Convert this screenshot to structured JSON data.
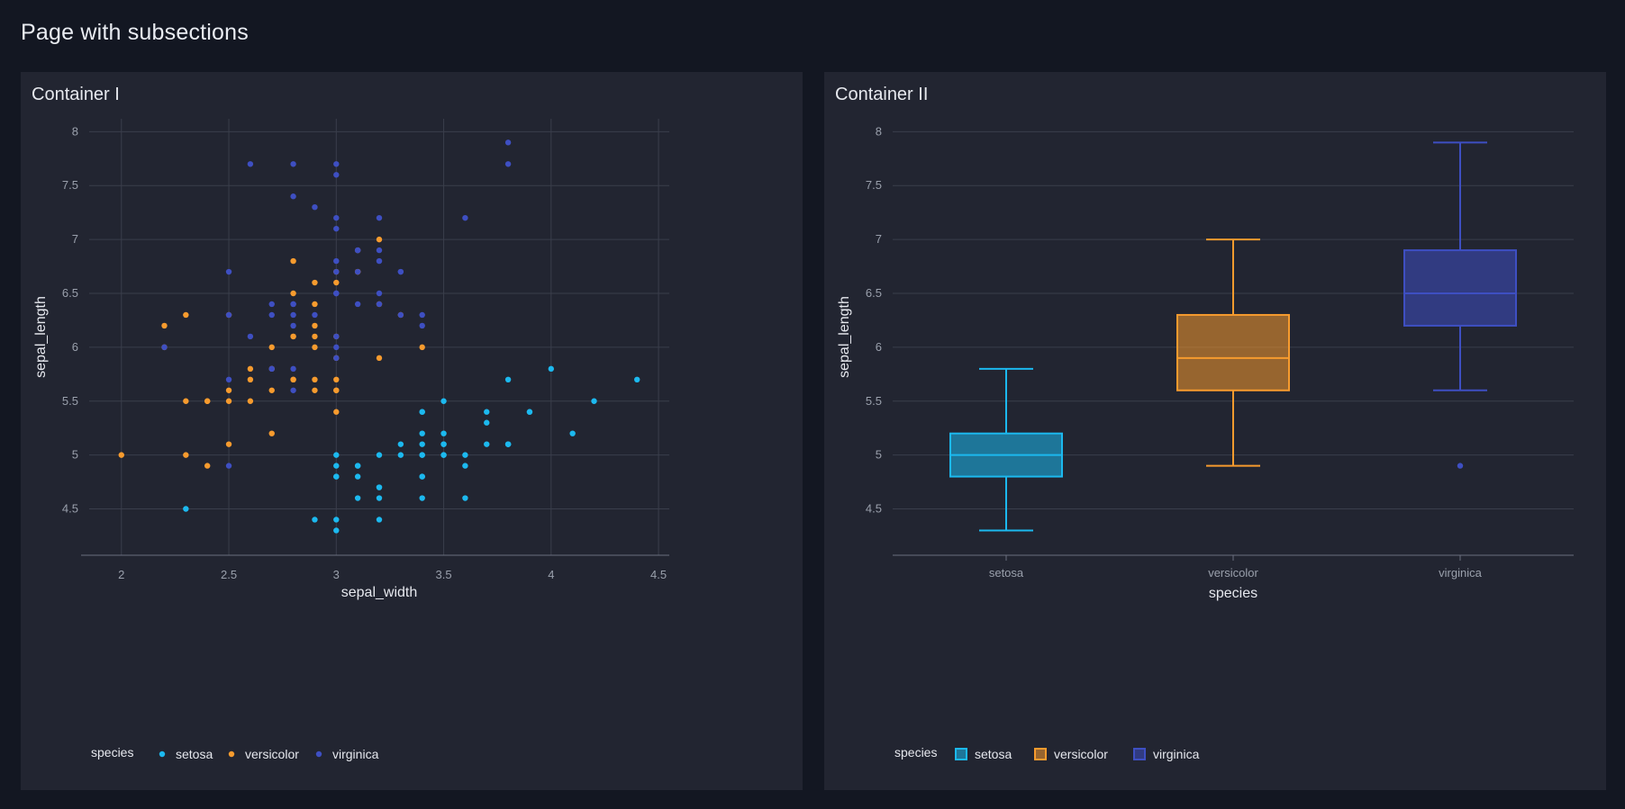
{
  "page": {
    "title": "Page with subsections"
  },
  "containers": [
    {
      "title": "Container I"
    },
    {
      "title": "Container II"
    }
  ],
  "colors": {
    "setosa": "#1cb9ef",
    "versicolor": "#f79b2e",
    "virginica": "#3e4fc2"
  },
  "chart_data": [
    {
      "type": "scatter",
      "title": "",
      "xlabel": "sepal_width",
      "ylabel": "sepal_length",
      "xlim": [
        1.85,
        4.55
      ],
      "ylim": [
        4.07,
        8.12
      ],
      "xticks": [
        "2",
        "2.5",
        "3",
        "3.5",
        "4",
        "4.5"
      ],
      "yticks": [
        "4.5",
        "5",
        "5.5",
        "6",
        "6.5",
        "7",
        "7.5",
        "8"
      ],
      "legend": {
        "title": "species",
        "position": "bottom-left",
        "entries": [
          "setosa",
          "versicolor",
          "virginica"
        ]
      },
      "series": [
        {
          "name": "setosa",
          "color": "#1cb9ef",
          "points": [
            [
              3.5,
              5.1
            ],
            [
              3.0,
              4.9
            ],
            [
              3.2,
              4.7
            ],
            [
              3.1,
              4.6
            ],
            [
              3.6,
              5.0
            ],
            [
              3.9,
              5.4
            ],
            [
              3.4,
              4.6
            ],
            [
              3.4,
              5.0
            ],
            [
              2.9,
              4.4
            ],
            [
              3.1,
              4.9
            ],
            [
              3.7,
              5.4
            ],
            [
              3.4,
              4.8
            ],
            [
              3.0,
              4.8
            ],
            [
              3.0,
              4.3
            ],
            [
              4.0,
              5.8
            ],
            [
              4.4,
              5.7
            ],
            [
              3.9,
              5.4
            ],
            [
              3.5,
              5.1
            ],
            [
              3.8,
              5.7
            ],
            [
              3.8,
              5.1
            ],
            [
              3.4,
              5.4
            ],
            [
              3.7,
              5.1
            ],
            [
              3.6,
              4.6
            ],
            [
              3.3,
              5.1
            ],
            [
              3.4,
              4.8
            ],
            [
              3.0,
              5.0
            ],
            [
              3.4,
              5.0
            ],
            [
              3.5,
              5.2
            ],
            [
              3.4,
              5.2
            ],
            [
              3.2,
              4.7
            ],
            [
              3.1,
              4.8
            ],
            [
              3.4,
              5.4
            ],
            [
              4.1,
              5.2
            ],
            [
              4.2,
              5.5
            ],
            [
              3.1,
              4.9
            ],
            [
              3.2,
              5.0
            ],
            [
              3.5,
              5.5
            ],
            [
              3.6,
              4.9
            ],
            [
              3.0,
              4.4
            ],
            [
              3.4,
              5.1
            ],
            [
              3.5,
              5.0
            ],
            [
              2.3,
              4.5
            ],
            [
              3.2,
              4.4
            ],
            [
              3.5,
              5.0
            ],
            [
              3.8,
              5.1
            ],
            [
              3.0,
              4.8
            ],
            [
              3.8,
              5.1
            ],
            [
              3.2,
              4.6
            ],
            [
              3.7,
              5.3
            ],
            [
              3.3,
              5.0
            ]
          ]
        },
        {
          "name": "versicolor",
          "color": "#f79b2e",
          "points": [
            [
              3.2,
              7.0
            ],
            [
              3.2,
              6.4
            ],
            [
              3.1,
              6.9
            ],
            [
              2.3,
              5.5
            ],
            [
              2.8,
              6.5
            ],
            [
              2.8,
              5.7
            ],
            [
              3.3,
              6.3
            ],
            [
              2.4,
              4.9
            ],
            [
              2.9,
              6.6
            ],
            [
              2.7,
              5.2
            ],
            [
              2.0,
              5.0
            ],
            [
              3.0,
              5.9
            ],
            [
              2.2,
              6.0
            ],
            [
              2.9,
              6.1
            ],
            [
              2.9,
              5.6
            ],
            [
              3.1,
              6.7
            ],
            [
              3.0,
              5.6
            ],
            [
              2.7,
              5.8
            ],
            [
              2.2,
              6.2
            ],
            [
              2.5,
              5.6
            ],
            [
              3.2,
              5.9
            ],
            [
              2.8,
              6.1
            ],
            [
              2.5,
              6.3
            ],
            [
              2.8,
              6.1
            ],
            [
              2.9,
              6.4
            ],
            [
              3.0,
              6.6
            ],
            [
              2.8,
              6.8
            ],
            [
              3.0,
              6.7
            ],
            [
              2.9,
              6.0
            ],
            [
              2.6,
              5.7
            ],
            [
              2.4,
              5.5
            ],
            [
              2.4,
              5.5
            ],
            [
              2.7,
              5.8
            ],
            [
              2.7,
              6.0
            ],
            [
              3.0,
              5.4
            ],
            [
              3.4,
              6.0
            ],
            [
              3.1,
              6.7
            ],
            [
              2.3,
              6.3
            ],
            [
              3.0,
              5.6
            ],
            [
              2.5,
              5.5
            ],
            [
              2.6,
              5.5
            ],
            [
              3.0,
              6.1
            ],
            [
              2.6,
              5.8
            ],
            [
              2.3,
              5.0
            ],
            [
              2.7,
              5.6
            ],
            [
              3.0,
              5.7
            ],
            [
              2.9,
              5.7
            ],
            [
              2.9,
              6.2
            ],
            [
              2.5,
              5.1
            ],
            [
              2.8,
              5.7
            ]
          ]
        },
        {
          "name": "virginica",
          "color": "#3e4fc2",
          "points": [
            [
              3.3,
              6.3
            ],
            [
              2.7,
              5.8
            ],
            [
              3.0,
              7.1
            ],
            [
              2.9,
              6.3
            ],
            [
              3.0,
              6.5
            ],
            [
              3.0,
              7.6
            ],
            [
              2.5,
              4.9
            ],
            [
              2.9,
              7.3
            ],
            [
              2.5,
              6.7
            ],
            [
              3.6,
              7.2
            ],
            [
              3.2,
              6.5
            ],
            [
              2.7,
              6.4
            ],
            [
              3.0,
              6.8
            ],
            [
              2.5,
              5.7
            ],
            [
              2.8,
              5.8
            ],
            [
              3.2,
              6.4
            ],
            [
              3.0,
              6.5
            ],
            [
              3.8,
              7.7
            ],
            [
              2.6,
              7.7
            ],
            [
              2.2,
              6.0
            ],
            [
              3.2,
              6.9
            ],
            [
              2.8,
              5.6
            ],
            [
              2.8,
              7.7
            ],
            [
              2.7,
              6.3
            ],
            [
              3.3,
              6.7
            ],
            [
              3.2,
              7.2
            ],
            [
              2.8,
              6.2
            ],
            [
              3.0,
              6.1
            ],
            [
              2.8,
              6.4
            ],
            [
              3.0,
              7.2
            ],
            [
              2.8,
              7.4
            ],
            [
              3.8,
              7.9
            ],
            [
              2.8,
              6.4
            ],
            [
              2.8,
              6.3
            ],
            [
              2.6,
              6.1
            ],
            [
              3.0,
              7.7
            ],
            [
              3.4,
              6.3
            ],
            [
              3.1,
              6.4
            ],
            [
              3.0,
              6.0
            ],
            [
              3.1,
              6.9
            ],
            [
              3.1,
              6.7
            ],
            [
              3.1,
              6.9
            ],
            [
              2.7,
              5.8
            ],
            [
              3.2,
              6.8
            ],
            [
              3.3,
              6.7
            ],
            [
              3.0,
              6.7
            ],
            [
              2.5,
              6.3
            ],
            [
              3.0,
              6.5
            ],
            [
              3.4,
              6.2
            ],
            [
              3.0,
              5.9
            ]
          ]
        }
      ]
    },
    {
      "type": "box",
      "title": "",
      "xlabel": "species",
      "ylabel": "sepal_length",
      "ylim": [
        4.07,
        8.12
      ],
      "yticks": [
        "4.5",
        "5",
        "5.5",
        "6",
        "6.5",
        "7",
        "7.5",
        "8"
      ],
      "categories": [
        "setosa",
        "versicolor",
        "virginica"
      ],
      "legend": {
        "title": "species",
        "position": "bottom-left",
        "entries": [
          "setosa",
          "versicolor",
          "virginica"
        ]
      },
      "boxes": [
        {
          "name": "setosa",
          "color": "#1cb9ef",
          "min": 4.3,
          "q1": 4.8,
          "median": 5.0,
          "q3": 5.2,
          "max": 5.8,
          "outliers": []
        },
        {
          "name": "versicolor",
          "color": "#f79b2e",
          "min": 4.9,
          "q1": 5.6,
          "median": 5.9,
          "q3": 6.3,
          "max": 7.0,
          "outliers": []
        },
        {
          "name": "virginica",
          "color": "#3e4fc2",
          "min": 5.6,
          "q1": 6.2,
          "median": 6.5,
          "q3": 6.9,
          "max": 7.9,
          "outliers": [
            4.9
          ]
        }
      ]
    }
  ]
}
